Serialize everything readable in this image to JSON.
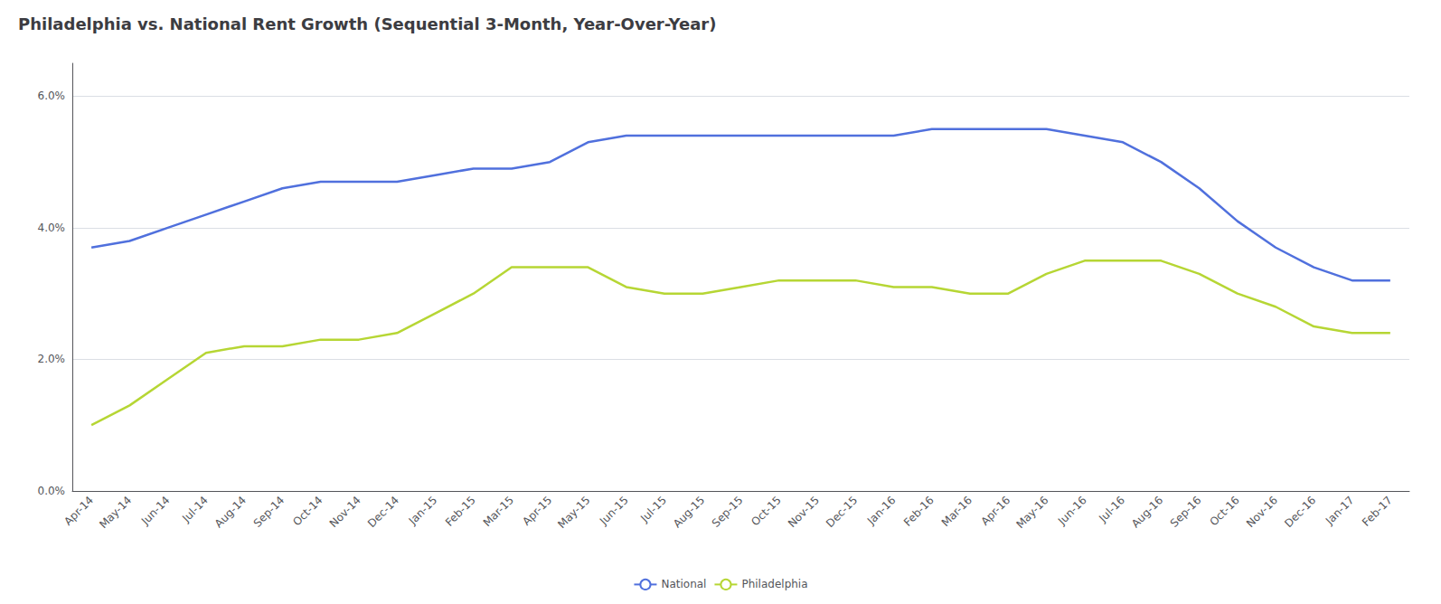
{
  "chart_data": {
    "type": "line",
    "title": "Philadelphia vs. National Rent Growth (Sequential 3-Month, Year-Over-Year)",
    "categories": [
      "Apr-14",
      "May-14",
      "Jun-14",
      "Jul-14",
      "Aug-14",
      "Sep-14",
      "Oct-14",
      "Nov-14",
      "Dec-14",
      "Jan-15",
      "Feb-15",
      "Mar-15",
      "Apr-15",
      "May-15",
      "Jun-15",
      "Jul-15",
      "Aug-15",
      "Sep-15",
      "Oct-15",
      "Nov-15",
      "Dec-15",
      "Jan-16",
      "Feb-16",
      "Mar-16",
      "Apr-16",
      "May-16",
      "Jun-16",
      "Jul-16",
      "Aug-16",
      "Sep-16",
      "Oct-16",
      "Nov-16",
      "Dec-16",
      "Jan-17",
      "Feb-17"
    ],
    "series": [
      {
        "name": "National",
        "values": [
          0.037,
          0.038,
          0.04,
          0.042,
          0.044,
          0.046,
          0.047,
          0.047,
          0.047,
          0.048,
          0.049,
          0.049,
          0.05,
          0.053,
          0.054,
          0.054,
          0.054,
          0.054,
          0.054,
          0.054,
          0.054,
          0.054,
          0.055,
          0.055,
          0.055,
          0.055,
          0.054,
          0.053,
          0.05,
          0.046,
          0.041,
          0.037,
          0.034,
          0.032,
          0.032
        ]
      },
      {
        "name": "Philadelphia",
        "values": [
          0.01,
          0.013,
          0.017,
          0.021,
          0.022,
          0.022,
          0.023,
          0.023,
          0.024,
          0.027,
          0.03,
          0.034,
          0.034,
          0.034,
          0.031,
          0.03,
          0.03,
          0.031,
          0.032,
          0.032,
          0.032,
          0.031,
          0.031,
          0.03,
          0.03,
          0.033,
          0.035,
          0.035,
          0.035,
          0.033,
          0.03,
          0.028,
          0.025,
          0.024,
          0.024
        ]
      }
    ],
    "ylim": [
      0.0,
      0.065
    ],
    "yticks": [
      {
        "value": 0.0,
        "label": "0.0%"
      },
      {
        "value": 0.02,
        "label": "2.0%"
      },
      {
        "value": 0.04,
        "label": "4.0%"
      },
      {
        "value": 0.06,
        "label": "6.0%"
      }
    ],
    "grid": true,
    "legend": "bottom"
  }
}
